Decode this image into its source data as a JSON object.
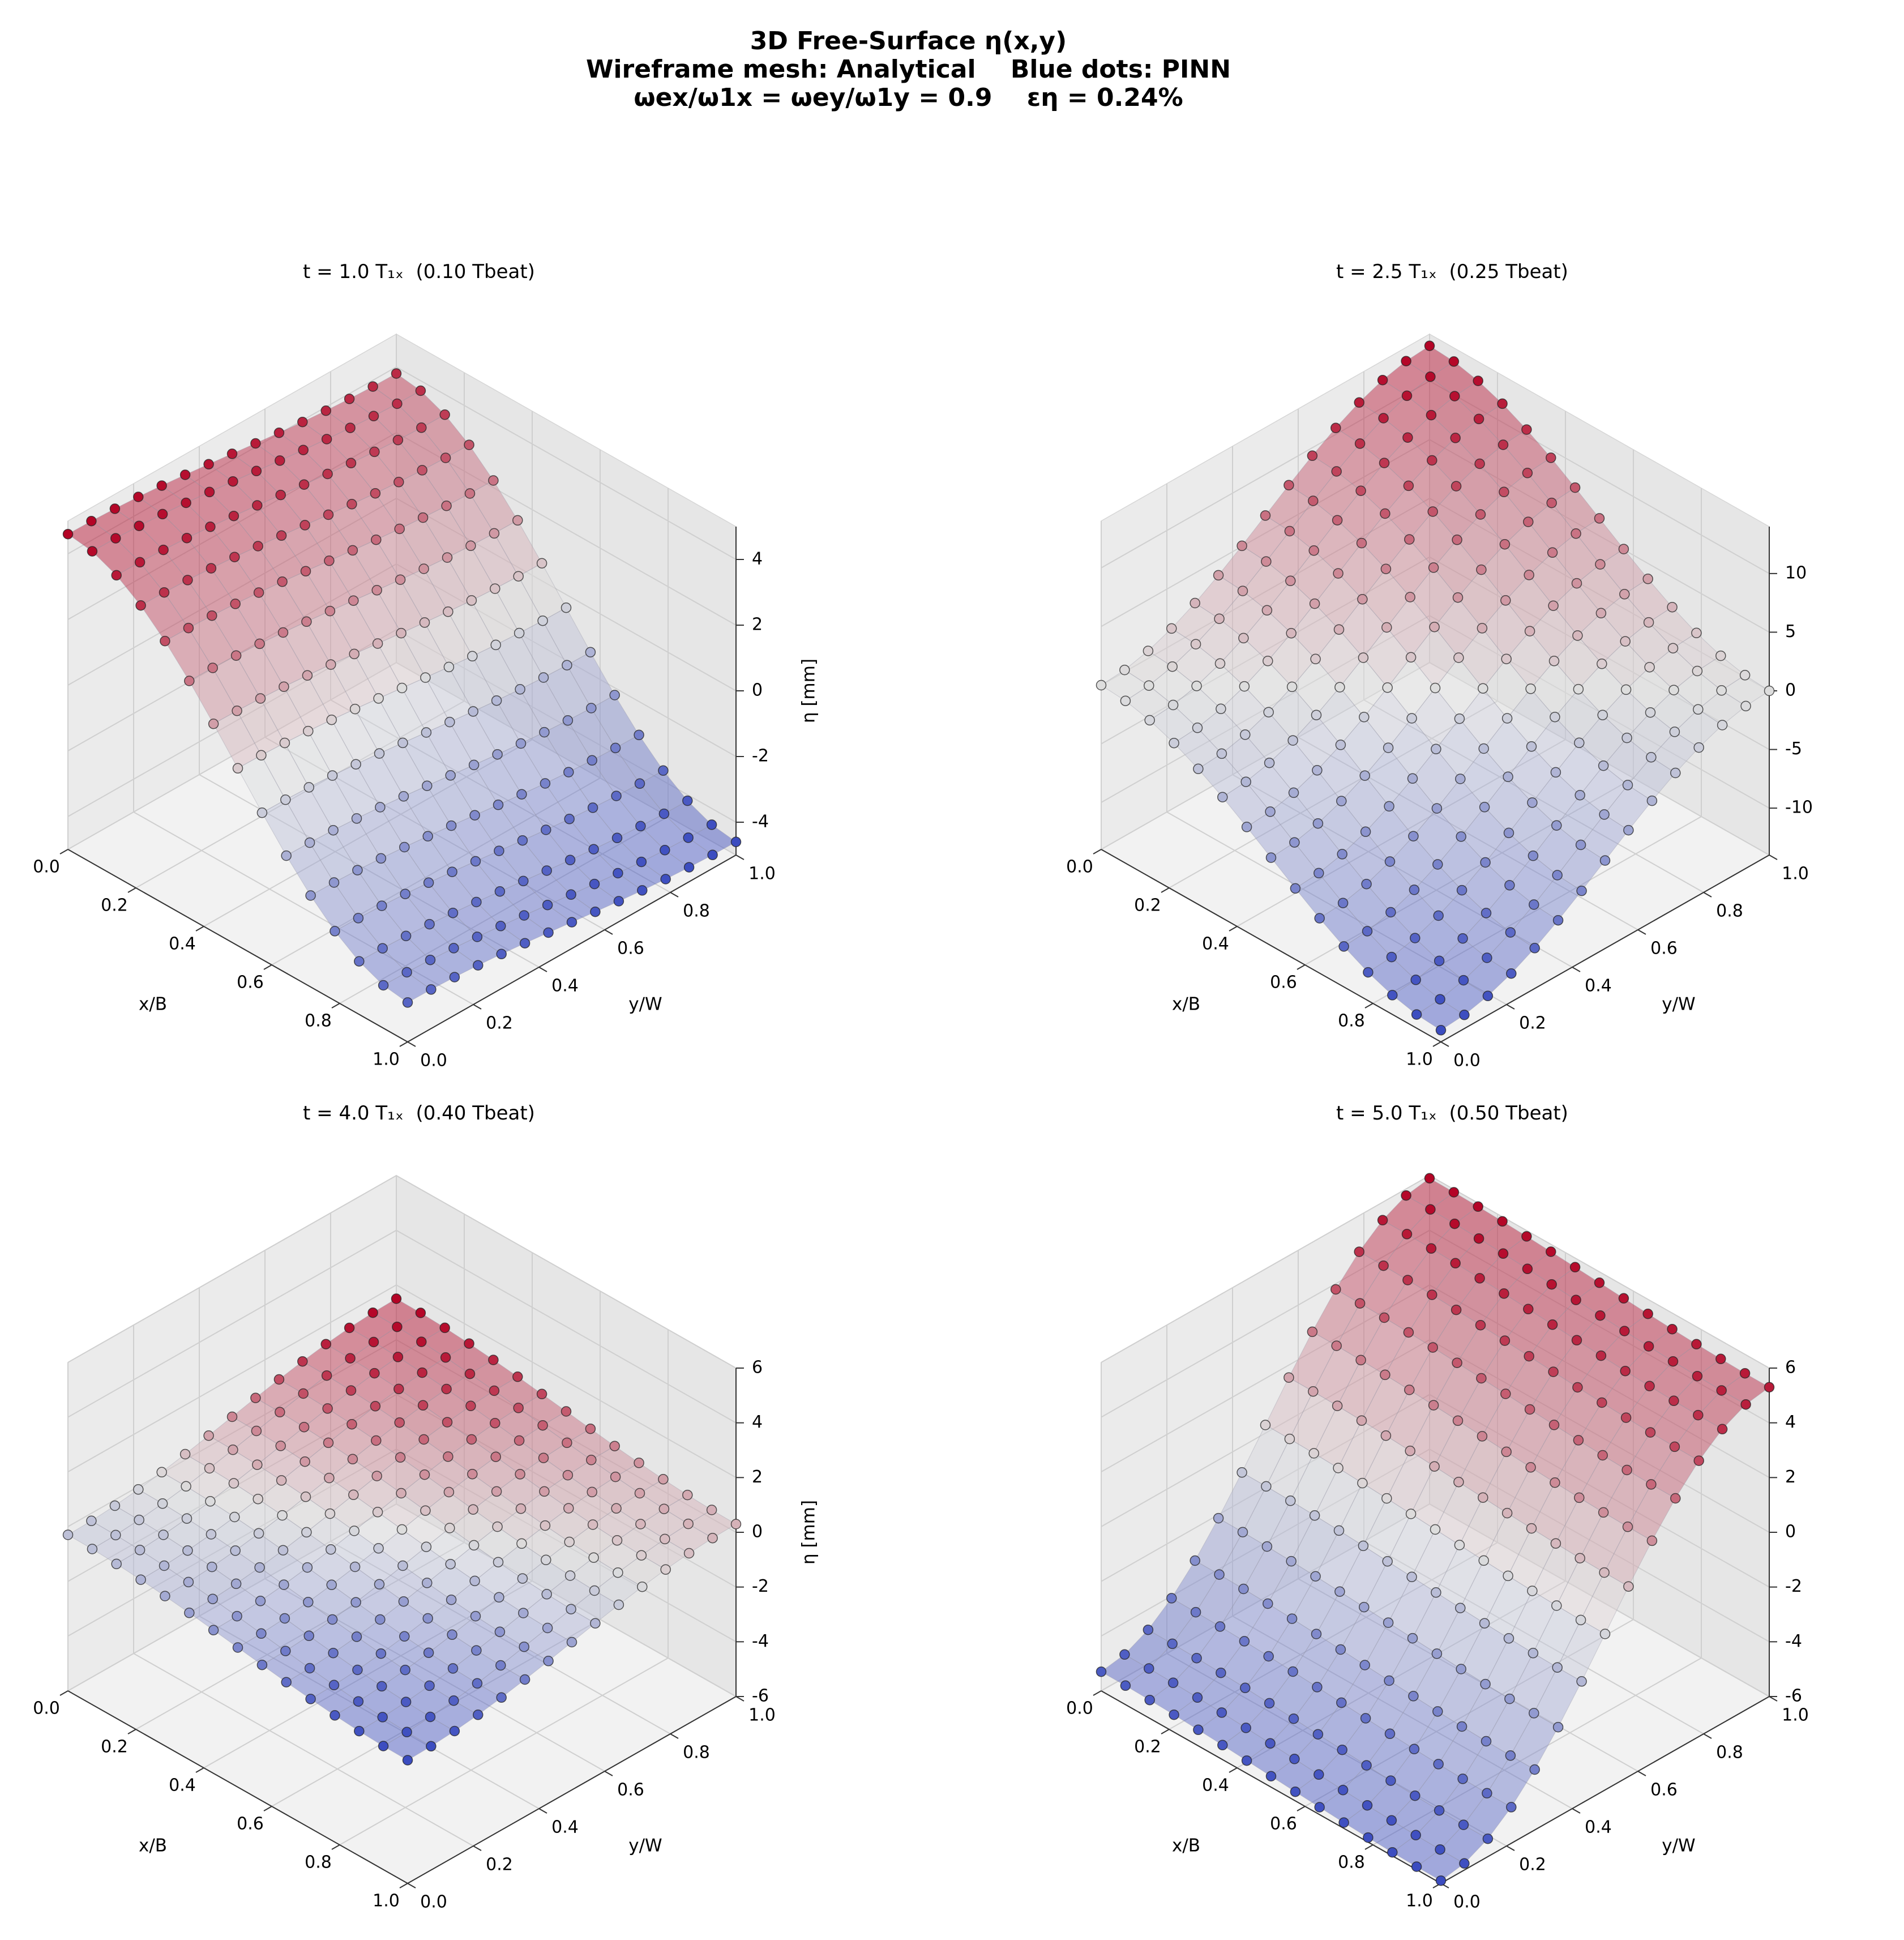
{
  "figure": {
    "title_lines": [
      "3D Free-Surface η(x,y)",
      "Wireframe mesh: Analytical    Blue dots: PINN",
      "ωex/ω1x = ωey/ω1y = 0.9    εη = 0.24%"
    ]
  },
  "colors": {
    "low": "#3b4cc0",
    "mid": "#dddddd",
    "high": "#b40426",
    "pane_wall": "#ebebeb",
    "pane_floor": "#f2f2f2",
    "grid": "#cfcfcf"
  },
  "chart_data": [
    {
      "type": "surface3d",
      "title": "t = 1.0 T₁ₓ  (0.10 Tbeat)",
      "xlabel": "x/B",
      "ylabel": "y/W",
      "zlabel": "η [mm]",
      "xlim": [
        0,
        1
      ],
      "ylim": [
        0,
        1
      ],
      "zlim": [
        -5,
        5
      ],
      "xticks": [
        0.0,
        0.2,
        0.4,
        0.6,
        0.8,
        1.0
      ],
      "xtick_labels": [
        "0.0",
        "0.2",
        "0.4",
        "0.6",
        "0.8",
        "1.0"
      ],
      "yticks": [
        0.0,
        0.2,
        0.4,
        0.6,
        0.8,
        1.0
      ],
      "ytick_labels": [
        "0.0",
        "0.2",
        "0.4",
        "0.6",
        "0.8",
        "1.0"
      ],
      "zticks": [
        -4,
        -2,
        0,
        2,
        4
      ],
      "ztick_labels": [
        "-4",
        "-2",
        "0",
        "2",
        "4"
      ],
      "surface": {
        "model": "eta = ax*cos(pi*x) + ay*cos(pi*y)",
        "ax": 4.2,
        "ay": 0.4
      },
      "pinn_grid": {
        "nx": 15,
        "ny": 15
      }
    },
    {
      "type": "surface3d",
      "title": "t = 2.5 T₁ₓ  (0.25 Tbeat)",
      "xlabel": "x/B",
      "ylabel": "y/W",
      "zlabel": "",
      "xlim": [
        0,
        1
      ],
      "ylim": [
        0,
        1
      ],
      "zlim": [
        -14,
        14
      ],
      "xticks": [
        0.0,
        0.2,
        0.4,
        0.6,
        0.8,
        1.0
      ],
      "xtick_labels": [
        "0.0",
        "0.2",
        "0.4",
        "0.6",
        "0.8",
        "1.0"
      ],
      "yticks": [
        0.0,
        0.2,
        0.4,
        0.6,
        0.8,
        1.0
      ],
      "ytick_labels": [
        "0.0",
        "0.2",
        "0.4",
        "0.6",
        "0.8",
        "1.0"
      ],
      "zticks": [
        -10,
        -5,
        0,
        5,
        10
      ],
      "ztick_labels": [
        "-10",
        "-5",
        "0",
        "5",
        "10"
      ],
      "surface": {
        "model": "eta = ax*cos(pi*x) + ay*cos(pi*y)",
        "ax": 6.5,
        "ay": -6.5
      },
      "pinn_grid": {
        "nx": 15,
        "ny": 15
      }
    },
    {
      "type": "surface3d",
      "title": "t = 4.0 T₁ₓ  (0.40 Tbeat)",
      "xlabel": "x/B",
      "ylabel": "y/W",
      "zlabel": "η [mm]",
      "xlim": [
        0,
        1
      ],
      "ylim": [
        0,
        1
      ],
      "zlim": [
        -6,
        6
      ],
      "xticks": [
        0.0,
        0.2,
        0.4,
        0.6,
        0.8,
        1.0
      ],
      "xtick_labels": [
        "0.0",
        "0.2",
        "0.4",
        "0.6",
        "0.8",
        "1.0"
      ],
      "yticks": [
        0.0,
        0.2,
        0.4,
        0.6,
        0.8,
        1.0
      ],
      "ytick_labels": [
        "0.0",
        "0.2",
        "0.4",
        "0.6",
        "0.8",
        "1.0"
      ],
      "zticks": [
        -6,
        -4,
        -2,
        0,
        2,
        4,
        6
      ],
      "ztick_labels": [
        "-6",
        "-4",
        "-2",
        "0",
        "2",
        "4",
        "6"
      ],
      "surface": {
        "model": "eta = ax*cos(pi*x) + ay*cos(pi*y)",
        "ax": 0.6,
        "ay": -0.9
      },
      "pinn_grid": {
        "nx": 15,
        "ny": 15
      }
    },
    {
      "type": "surface3d",
      "title": "t = 5.0 T₁ₓ  (0.50 Tbeat)",
      "xlabel": "x/B",
      "ylabel": "y/W",
      "zlabel": "",
      "xlim": [
        0,
        1
      ],
      "ylim": [
        0,
        1
      ],
      "zlim": [
        -6,
        6
      ],
      "xticks": [
        0.0,
        0.2,
        0.4,
        0.6,
        0.8,
        1.0
      ],
      "xtick_labels": [
        "0.0",
        "0.2",
        "0.4",
        "0.6",
        "0.8",
        "1.0"
      ],
      "yticks": [
        0.0,
        0.2,
        0.4,
        0.6,
        0.8,
        1.0
      ],
      "ytick_labels": [
        "0.0",
        "0.2",
        "0.4",
        "0.6",
        "0.8",
        "1.0"
      ],
      "zticks": [
        -6,
        -4,
        -2,
        0,
        2,
        4,
        6
      ],
      "ztick_labels": [
        "-6",
        "-4",
        "-2",
        "0",
        "2",
        "4",
        "6"
      ],
      "surface": {
        "model": "eta = ax*cos(pi*x) + ay*cos(pi*y)",
        "ax": 0.3,
        "ay": -5.6
      },
      "pinn_grid": {
        "nx": 15,
        "ny": 15
      }
    }
  ]
}
